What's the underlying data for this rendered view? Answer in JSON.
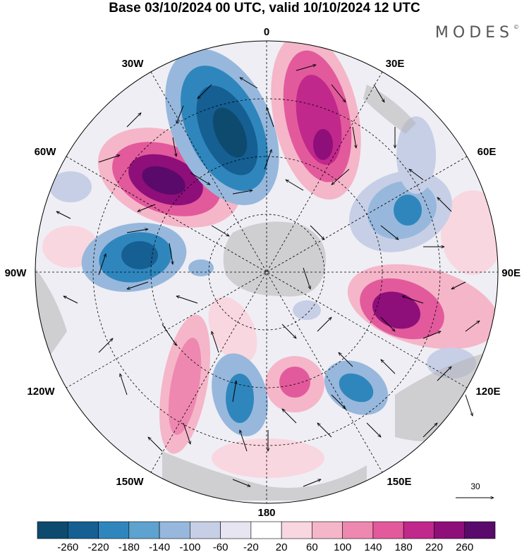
{
  "title": "Base 03/10/2024 00 UTC, valid 10/10/2024 12 UTC",
  "logo": "MODES",
  "longitude_labels": {
    "n": "0",
    "ne1": "30E",
    "ne2": "60E",
    "e": "90E",
    "se1": "120E",
    "se2": "150E",
    "s": "180",
    "sw2": "150W",
    "sw1": "120W",
    "w": "90W",
    "nw2": "60W",
    "nw1": "30W"
  },
  "reference_vector_label": "30",
  "colorbar": {
    "colors": [
      "#0d4a6e",
      "#155f93",
      "#2f86bd",
      "#5ea2cf",
      "#97b8dc",
      "#c7cfe6",
      "#e6e5f1",
      "#ffffff",
      "#f9d7e0",
      "#f5b6c9",
      "#ee88b0",
      "#e25a9c",
      "#c0288b",
      "#8e0f7a",
      "#5a0a6a"
    ],
    "tick_labels": [
      "-260",
      "-220",
      "-180",
      "-140",
      "-100",
      "-60",
      "-20",
      "20",
      "60",
      "100",
      "140",
      "180",
      "220",
      "260"
    ]
  },
  "palette": {
    "ocean_bg": "#f1f0f5",
    "land": "#b5b5b5",
    "positive": "#c0288b",
    "negative": "#155f93"
  }
}
